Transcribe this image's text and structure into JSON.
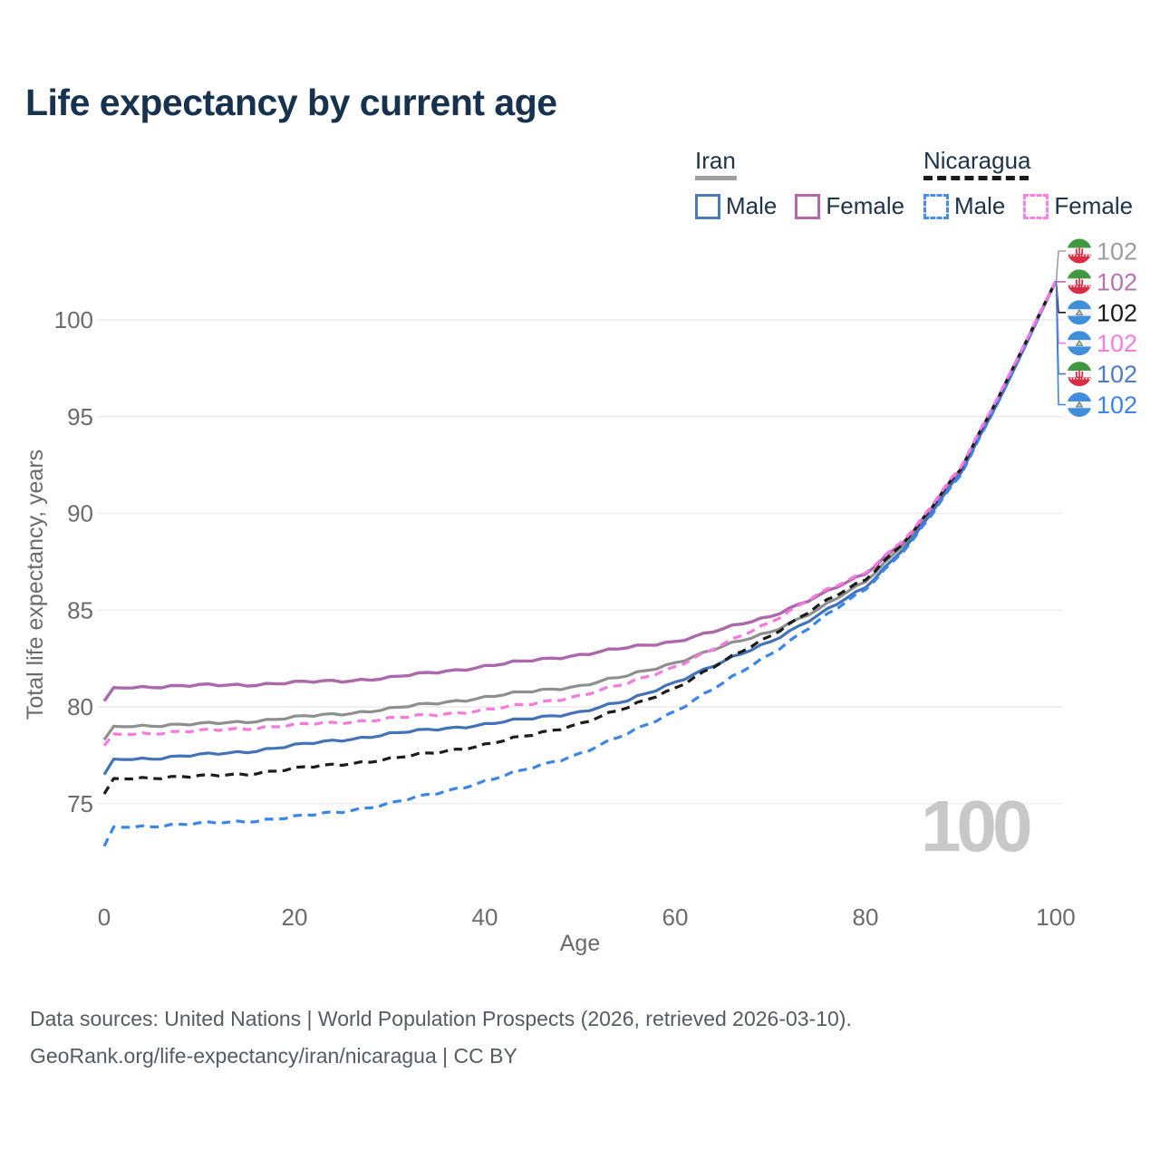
{
  "title": "Life expectancy by current age",
  "watermark": "100",
  "legend": {
    "groups": [
      {
        "label": "Iran",
        "line_style": "solid",
        "underline_color": "#9e9e9e",
        "items": [
          {
            "label": "Male",
            "color": "#4a7abc"
          },
          {
            "label": "Female",
            "color": "#b269ae"
          }
        ]
      },
      {
        "label": "Nicaragua",
        "line_style": "dashed",
        "underline_color": "#1a1a1a",
        "items": [
          {
            "label": "Male",
            "color": "#4a8cea"
          },
          {
            "label": "Female",
            "color": "#fc80e8"
          }
        ]
      }
    ]
  },
  "footer": {
    "line1": "Data sources: United Nations | World Population Prospects (2026, retrieved 2026-03-10).",
    "line2": "GeoRank.org/life-expectancy/iran/nicaragua | CC BY"
  },
  "chart_data": {
    "type": "line",
    "title": "Life expectancy by current age",
    "xlabel": "Age",
    "ylabel": "Total life expectancy, years",
    "x_ticks": [
      0,
      20,
      40,
      60,
      80,
      100
    ],
    "y_ticks": [
      75,
      80,
      85,
      90,
      95,
      100
    ],
    "xlim": [
      0,
      100
    ],
    "ylim": [
      72,
      103.5
    ],
    "grid": "horizontal",
    "legend_position": "top-right",
    "ages": [
      0,
      1,
      5,
      10,
      15,
      20,
      25,
      30,
      35,
      40,
      45,
      50,
      55,
      60,
      65,
      70,
      75,
      80,
      85,
      90,
      95,
      100
    ],
    "series": [
      {
        "id": "iran-both",
        "name": "Iran (both sexes)",
        "country": "Iran",
        "sex": "both",
        "color": "#8f8f8f",
        "dash": "solid",
        "end_label": "102",
        "values": [
          78.3,
          79.0,
          79.05,
          79.1,
          79.25,
          79.45,
          79.65,
          79.9,
          80.2,
          80.5,
          80.8,
          81.1,
          81.6,
          82.3,
          83.1,
          83.9,
          85.0,
          86.5,
          88.9,
          92.2,
          96.9,
          102
        ]
      },
      {
        "id": "iran-female",
        "name": "Iran Female",
        "country": "Iran",
        "sex": "female",
        "color": "#ad68ad",
        "dash": "solid",
        "end_label": "102",
        "values": [
          80.3,
          81.0,
          81.05,
          81.1,
          81.15,
          81.25,
          81.35,
          81.5,
          81.8,
          82.1,
          82.4,
          82.7,
          83.05,
          83.4,
          84.0,
          84.7,
          85.7,
          86.9,
          89.0,
          92.3,
          97.0,
          102
        ]
      },
      {
        "id": "iran-male",
        "name": "Iran Male",
        "country": "Iran",
        "sex": "male",
        "color": "#4272b8",
        "dash": "solid",
        "end_label": "102",
        "values": [
          76.5,
          77.3,
          77.35,
          77.5,
          77.7,
          78.0,
          78.3,
          78.6,
          78.85,
          79.1,
          79.4,
          79.75,
          80.3,
          81.3,
          82.3,
          83.4,
          84.7,
          86.2,
          88.7,
          92.1,
          96.8,
          102
        ]
      },
      {
        "id": "nicaragua-both",
        "name": "Nicaragua (both sexes)",
        "country": "Nicaragua",
        "sex": "both",
        "color": "#1c1c1c",
        "dash": "dashed",
        "end_label": "102",
        "values": [
          75.5,
          76.3,
          76.35,
          76.4,
          76.55,
          76.8,
          77.05,
          77.3,
          77.65,
          78.05,
          78.55,
          79.15,
          79.95,
          81.0,
          82.3,
          83.7,
          85.2,
          86.6,
          89.0,
          92.3,
          97.0,
          102
        ]
      },
      {
        "id": "nicaragua-female",
        "name": "Nicaragua Female",
        "country": "Nicaragua",
        "sex": "female",
        "color": "#f878e0",
        "dash": "dashed",
        "end_label": "102",
        "values": [
          78.0,
          78.6,
          78.65,
          78.75,
          78.9,
          79.05,
          79.2,
          79.4,
          79.6,
          79.85,
          80.15,
          80.6,
          81.2,
          82.1,
          83.2,
          84.4,
          85.8,
          86.95,
          89.1,
          92.4,
          97.05,
          102
        ]
      },
      {
        "id": "nicaragua-male",
        "name": "Nicaragua Male",
        "country": "Nicaragua",
        "sex": "male",
        "color": "#3a85ea",
        "dash": "dashed",
        "end_label": "102",
        "values": [
          72.8,
          73.8,
          73.85,
          73.95,
          74.1,
          74.3,
          74.6,
          75.0,
          75.55,
          76.15,
          76.85,
          77.6,
          78.6,
          79.8,
          81.2,
          82.75,
          84.4,
          86.1,
          88.6,
          92.0,
          96.8,
          102
        ]
      }
    ],
    "right_labels": [
      {
        "series": "iran-both",
        "text": "102",
        "color": "#9d9d9d",
        "flag": "iran"
      },
      {
        "series": "iran-female",
        "text": "102",
        "color": "#b671b4",
        "flag": "iran"
      },
      {
        "series": "nicaragua-both",
        "text": "102",
        "color": "#1a1a1a",
        "flag": "nicaragua"
      },
      {
        "series": "nicaragua-female",
        "text": "102",
        "color": "#fb7be0",
        "flag": "nicaragua"
      },
      {
        "series": "iran-male",
        "text": "102",
        "color": "#4c7dc4",
        "flag": "iran"
      },
      {
        "series": "nicaragua-male",
        "text": "102",
        "color": "#3b82ea",
        "flag": "nicaragua"
      }
    ],
    "colors": {
      "grid": "#ececec",
      "tick_label": "#6b6b6b",
      "axis_title": "#6b6b6b",
      "watermark": "#c8c8c8",
      "flag_iran_green": "#3f9a3f",
      "flag_iran_red": "#da2c43",
      "flag_nicaragua_blue": "#3f8edc",
      "flag_nicaragua_gold": "#f3c53d"
    }
  }
}
